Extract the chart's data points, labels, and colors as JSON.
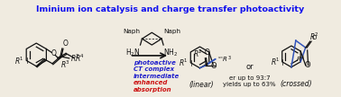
{
  "title": "Iminium ion catalysis and charge transfer photoactivity",
  "title_color": "#1010EE",
  "title_fontsize": 6.8,
  "bg_color": "#F0EBE0",
  "text_blue": "#2222CC",
  "text_red": "#CC1111",
  "text_black": "#111111",
  "arrow_color": "#222222",
  "label_linear": "(linear)",
  "label_crossed": "(crossed)",
  "label_er": "er up to 93:7",
  "label_yield": "yields up to 63%",
  "label_or": "or",
  "blue_lines": [
    "photoactive",
    "CT complex",
    "intermediate"
  ],
  "red_lines": [
    "enhanced",
    "absorption"
  ],
  "lw": 0.9
}
